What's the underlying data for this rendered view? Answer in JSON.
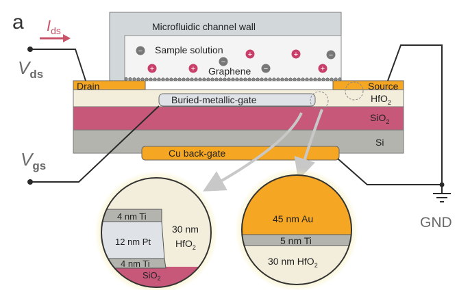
{
  "panel_label": "a",
  "labels": {
    "ids_main": "I",
    "ids_sub": "ds",
    "vds_main": "V",
    "vds_sub": "ds",
    "vgs_main": "V",
    "vgs_sub": "gs",
    "gnd": "GND",
    "channel_wall": "Microfluidic channel wall",
    "sample_solution": "Sample solution",
    "graphene": "Graphene",
    "drain": "Drain",
    "source": "Source",
    "hfo2_main": "HfO",
    "hfo2_sub": "2",
    "buried_gate": "Buried-metallic-gate",
    "sio2_main": "SiO",
    "sio2_sub": "2",
    "si": "Si",
    "cu_back_gate": "Cu back-gate"
  },
  "ions": {
    "negative_symbol": "−",
    "positive_symbol": "+"
  },
  "zoom_left": {
    "top_ti": "4 nm Ti",
    "pt": "12 nm Pt",
    "bottom_ti": "4 nm Ti",
    "sio2_main": "SiO",
    "sio2_sub": "2",
    "hfo2_line1": "30 nm",
    "hfo2_line2_main": "HfO",
    "hfo2_line2_sub": "2"
  },
  "zoom_right": {
    "au": "45 nm Au",
    "ti": "5 nm Ti",
    "hfo2_main": "30 nm HfO",
    "hfo2_sub": "2"
  },
  "colors": {
    "orange_metal": "#f5a623",
    "hfo2": "#f3eedc",
    "sio2": "#c8587a",
    "si": "#b4b4ae",
    "channel_wall": "#d2d7da",
    "solution": "#f4f4f4",
    "wire": "#2a2a2a",
    "gray_label": "#6a6a6a",
    "current_arrow": "#c9536a"
  }
}
